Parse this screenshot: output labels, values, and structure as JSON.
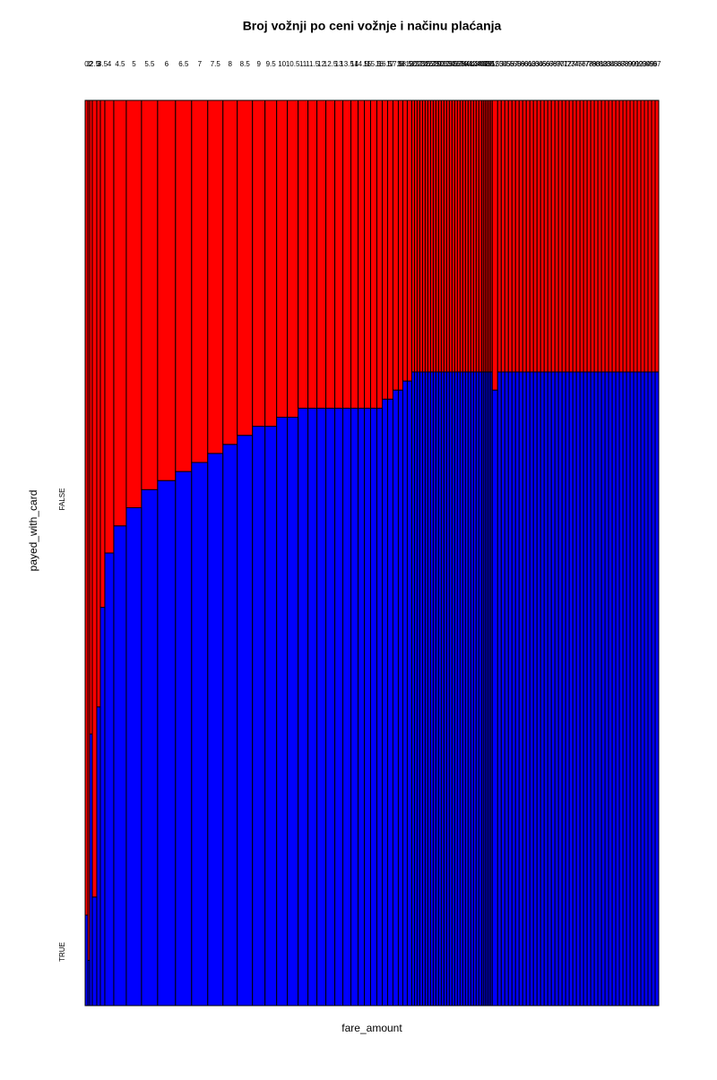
{
  "chart_data": {
    "type": "mosaic",
    "title": "Broj vožnji po ceni vožnje i načinu plaćanja",
    "x_label": "fare_amount",
    "y_label": "payed_with_card",
    "categories": [
      "0",
      "1",
      "2",
      "2.5",
      "3",
      "3.5",
      "4",
      "4.5",
      "5",
      "5.5",
      "6",
      "6.5",
      "7",
      "7.5",
      "8",
      "8.5",
      "9",
      "9.5",
      "10",
      "10.5",
      "11",
      "11.5",
      "12",
      "12.5",
      "13",
      "13.5",
      "14",
      "14.5",
      "15",
      "15.5",
      "16",
      "16.5",
      "17",
      "17.5",
      "18",
      "18.5",
      "19",
      "20",
      "21",
      "22",
      "23",
      "24",
      "25",
      "26",
      "27",
      "28",
      "29",
      "30",
      "31",
      "32",
      "33",
      "34",
      "35",
      "36",
      "37",
      "38",
      "39",
      "40",
      "41",
      "42",
      "43",
      "44",
      "45",
      "46",
      "47",
      "48",
      "49",
      "50",
      "51",
      "52",
      "53",
      "54",
      "55",
      "56",
      "57",
      "58",
      "59",
      "60",
      "61",
      "62",
      "63",
      "64",
      "65",
      "66",
      "67",
      "68",
      "69",
      "70",
      "71",
      "72",
      "73",
      "74",
      "75",
      "76",
      "77",
      "78",
      "79",
      "80",
      "81",
      "82",
      "83",
      "84",
      "85",
      "86",
      "87",
      "88",
      "89",
      "90",
      "91",
      "92",
      "93",
      "94",
      "95",
      "96",
      "97"
    ],
    "counts": [
      3,
      2,
      3,
      5,
      4,
      5,
      10,
      14,
      17,
      18,
      20,
      18,
      18,
      17,
      16,
      17,
      14,
      13,
      12,
      12,
      11,
      10,
      10,
      10,
      9,
      9,
      8,
      7,
      7,
      7,
      6,
      6,
      6,
      6,
      5,
      5,
      5,
      3,
      3,
      3,
      3,
      3,
      3,
      3,
      3,
      3,
      3,
      3,
      3,
      3,
      3,
      3,
      3,
      3,
      3,
      3,
      3,
      3,
      3,
      3,
      3,
      3,
      3,
      2,
      2,
      2,
      2,
      2,
      2,
      6,
      4,
      4,
      4,
      4,
      4,
      4,
      4,
      4,
      4,
      4,
      4,
      4,
      4,
      4,
      4,
      4,
      4,
      4,
      4,
      4,
      4,
      4,
      4,
      4,
      4,
      4,
      4,
      4,
      4,
      4,
      4,
      4,
      4,
      4,
      4,
      4,
      4,
      4,
      4,
      4,
      4,
      4,
      4,
      4,
      4
    ],
    "series": [
      {
        "name": "TRUE",
        "color": "#0000ff",
        "values": [
          0.1,
          0.05,
          0.3,
          0.12,
          0.33,
          0.44,
          0.5,
          0.53,
          0.55,
          0.57,
          0.58,
          0.59,
          0.6,
          0.61,
          0.62,
          0.63,
          0.64,
          0.64,
          0.65,
          0.65,
          0.66,
          0.66,
          0.66,
          0.66,
          0.66,
          0.66,
          0.66,
          0.66,
          0.66,
          0.66,
          0.66,
          0.67,
          0.67,
          0.68,
          0.68,
          0.69,
          0.69,
          0.7,
          0.7,
          0.7,
          0.7,
          0.7,
          0.7,
          0.7,
          0.7,
          0.7,
          0.7,
          0.7,
          0.7,
          0.7,
          0.7,
          0.7,
          0.7,
          0.7,
          0.7,
          0.7,
          0.7,
          0.7,
          0.7,
          0.7,
          0.7,
          0.7,
          0.7,
          0.7,
          0.7,
          0.7,
          0.7,
          0.7,
          0.7,
          0.68,
          0.7,
          0.7,
          0.7,
          0.7,
          0.7,
          0.7,
          0.7,
          0.7,
          0.7,
          0.7,
          0.7,
          0.7,
          0.7,
          0.7,
          0.7,
          0.7,
          0.7,
          0.7,
          0.7,
          0.7,
          0.7,
          0.7,
          0.7,
          0.7,
          0.7,
          0.7,
          0.7,
          0.7,
          0.7,
          0.7,
          0.7,
          0.7,
          0.7,
          0.7,
          0.7,
          0.7,
          0.7,
          0.7,
          0.7,
          0.7,
          0.7,
          0.7,
          0.7,
          0.7,
          0.7
        ]
      },
      {
        "name": "FALSE",
        "color": "#ff0000",
        "values": [
          0.9,
          0.95,
          0.7,
          0.88,
          0.67,
          0.56,
          0.5,
          0.47,
          0.45,
          0.43,
          0.42,
          0.41,
          0.4,
          0.39,
          0.38,
          0.37,
          0.36,
          0.36,
          0.35,
          0.35,
          0.34,
          0.34,
          0.34,
          0.34,
          0.34,
          0.34,
          0.34,
          0.34,
          0.34,
          0.34,
          0.34,
          0.33,
          0.33,
          0.32,
          0.32,
          0.31,
          0.31,
          0.3,
          0.3,
          0.3,
          0.3,
          0.3,
          0.3,
          0.3,
          0.3,
          0.3,
          0.3,
          0.3,
          0.3,
          0.3,
          0.3,
          0.3,
          0.3,
          0.3,
          0.3,
          0.3,
          0.3,
          0.3,
          0.3,
          0.3,
          0.3,
          0.3,
          0.3,
          0.3,
          0.3,
          0.3,
          0.3,
          0.3,
          0.3,
          0.32,
          0.3,
          0.3,
          0.3,
          0.3,
          0.3,
          0.3,
          0.3,
          0.3,
          0.3,
          0.3,
          0.3,
          0.3,
          0.3,
          0.3,
          0.3,
          0.3,
          0.3,
          0.3,
          0.3,
          0.3,
          0.3,
          0.3,
          0.3,
          0.3,
          0.3,
          0.3,
          0.3,
          0.3,
          0.3,
          0.3,
          0.3,
          0.3,
          0.3,
          0.3,
          0.3,
          0.3,
          0.3,
          0.3,
          0.3,
          0.3,
          0.3,
          0.3,
          0.3,
          0.3,
          0.3
        ]
      }
    ]
  }
}
